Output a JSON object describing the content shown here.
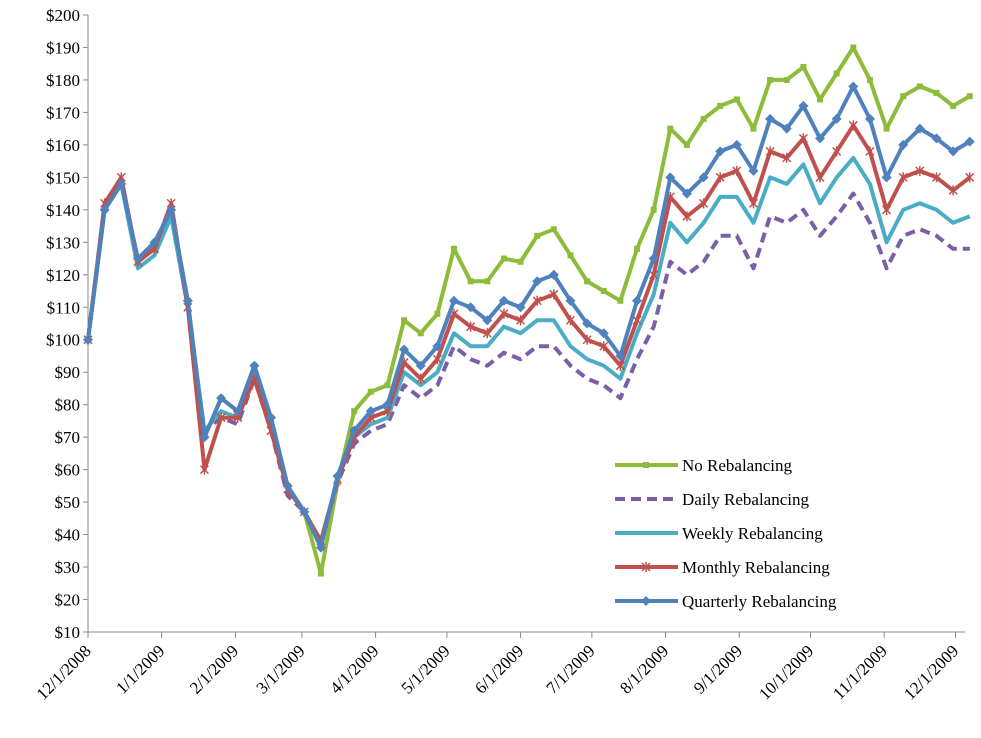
{
  "chart_data": {
    "type": "line",
    "x": [
      "12/1/2008",
      "12/8/2008",
      "12/15/2008",
      "12/22/2008",
      "12/29/2008",
      "1/5/2009",
      "1/12/2009",
      "1/19/2009",
      "1/26/2009",
      "2/2/2009",
      "2/9/2009",
      "2/16/2009",
      "2/23/2009",
      "3/2/2009",
      "3/9/2009",
      "3/16/2009",
      "3/23/2009",
      "3/30/2009",
      "4/6/2009",
      "4/13/2009",
      "4/20/2009",
      "4/27/2009",
      "5/4/2009",
      "5/11/2009",
      "5/18/2009",
      "5/25/2009",
      "6/1/2009",
      "6/8/2009",
      "6/15/2009",
      "6/22/2009",
      "6/29/2009",
      "7/6/2009",
      "7/13/2009",
      "7/20/2009",
      "7/27/2009",
      "8/3/2009",
      "8/10/2009",
      "8/17/2009",
      "8/24/2009",
      "8/31/2009",
      "9/7/2009",
      "9/14/2009",
      "9/21/2009",
      "9/28/2009",
      "10/5/2009",
      "10/12/2009",
      "10/19/2009",
      "10/26/2009",
      "11/2/2009",
      "11/9/2009",
      "11/16/2009",
      "11/23/2009",
      "11/30/2009",
      "12/7/2009"
    ],
    "series": [
      {
        "name": "No Rebalancing",
        "color": "#8dbb3a",
        "marker": "square",
        "values": [
          100,
          140,
          148,
          124,
          130,
          140,
          112,
          70,
          82,
          78,
          92,
          76,
          55,
          47,
          28,
          56,
          78,
          84,
          86,
          106,
          102,
          108,
          128,
          118,
          118,
          125,
          124,
          132,
          134,
          126,
          118,
          115,
          112,
          128,
          140,
          165,
          160,
          168,
          172,
          174,
          165,
          180,
          180,
          184,
          174,
          182,
          190,
          180,
          165,
          175,
          178,
          176,
          172,
          175
        ]
      },
      {
        "name": "Daily Rebalancing",
        "color": "#7b5ea7",
        "dashed": true,
        "values": [
          100,
          140,
          148,
          124,
          128,
          138,
          110,
          72,
          76,
          74,
          88,
          72,
          52,
          47,
          38,
          56,
          68,
          72,
          74,
          86,
          82,
          86,
          98,
          94,
          92,
          96,
          94,
          98,
          98,
          92,
          88,
          86,
          82,
          94,
          104,
          124,
          120,
          124,
          132,
          132,
          122,
          138,
          136,
          140,
          132,
          138,
          145,
          136,
          122,
          132,
          134,
          132,
          128,
          128
        ]
      },
      {
        "name": "Weekly Rebalancing",
        "color": "#4bacc6",
        "values": [
          100,
          140,
          148,
          122,
          126,
          138,
          110,
          72,
          78,
          76,
          90,
          74,
          54,
          47,
          38,
          57,
          70,
          74,
          76,
          90,
          86,
          90,
          102,
          98,
          98,
          104,
          102,
          106,
          106,
          98,
          94,
          92,
          88,
          102,
          114,
          136,
          130,
          136,
          144,
          144,
          136,
          150,
          148,
          154,
          142,
          150,
          156,
          148,
          130,
          140,
          142,
          140,
          136,
          138
        ]
      },
      {
        "name": "Monthly Rebalancing",
        "color": "#c0504d",
        "marker": "cross",
        "values": [
          100,
          142,
          150,
          124,
          128,
          142,
          110,
          60,
          76,
          76,
          88,
          72,
          54,
          47,
          38,
          57,
          70,
          76,
          78,
          93,
          88,
          94,
          108,
          104,
          102,
          108,
          106,
          112,
          114,
          106,
          100,
          98,
          92,
          106,
          120,
          144,
          138,
          142,
          150,
          152,
          142,
          158,
          156,
          162,
          150,
          158,
          166,
          158,
          140,
          150,
          152,
          150,
          146,
          150
        ]
      },
      {
        "name": "Quarterly Rebalancing",
        "color": "#4f81bd",
        "marker": "diamond",
        "values": [
          100,
          140,
          148,
          125,
          130,
          140,
          112,
          70,
          82,
          78,
          92,
          76,
          55,
          47,
          36,
          58,
          72,
          78,
          80,
          97,
          92,
          98,
          112,
          110,
          106,
          112,
          110,
          118,
          120,
          112,
          105,
          102,
          95,
          112,
          125,
          150,
          145,
          150,
          158,
          160,
          152,
          168,
          165,
          172,
          162,
          168,
          178,
          168,
          150,
          160,
          165,
          162,
          158,
          161
        ]
      }
    ],
    "xlim": [
      "12/1/2008",
      "12/5/2009"
    ],
    "xticks": [
      "12/1/2008",
      "1/1/2009",
      "2/1/2009",
      "3/1/2009",
      "4/1/2009",
      "5/1/2009",
      "6/1/2009",
      "7/1/2009",
      "8/1/2009",
      "9/1/2009",
      "10/1/2009",
      "11/1/2009",
      "12/1/2009"
    ],
    "ylim": [
      10,
      200
    ],
    "yticks": [
      {
        "value": 10,
        "label": "$10"
      },
      {
        "value": 20,
        "label": "$20"
      },
      {
        "value": 30,
        "label": "$30"
      },
      {
        "value": 40,
        "label": "$40"
      },
      {
        "value": 50,
        "label": "$50"
      },
      {
        "value": 60,
        "label": "$60"
      },
      {
        "value": 70,
        "label": "$70"
      },
      {
        "value": 80,
        "label": "$80"
      },
      {
        "value": 90,
        "label": "$90"
      },
      {
        "value": 100,
        "label": "$100"
      },
      {
        "value": 110,
        "label": "$110"
      },
      {
        "value": 120,
        "label": "$120"
      },
      {
        "value": 130,
        "label": "$130"
      },
      {
        "value": 140,
        "label": "$140"
      },
      {
        "value": 150,
        "label": "$150"
      },
      {
        "value": 160,
        "label": "$160"
      },
      {
        "value": 170,
        "label": "$170"
      },
      {
        "value": 180,
        "label": "$180"
      },
      {
        "value": 190,
        "label": "$190"
      },
      {
        "value": 200,
        "label": "$200"
      }
    ],
    "legend": "lower right"
  }
}
